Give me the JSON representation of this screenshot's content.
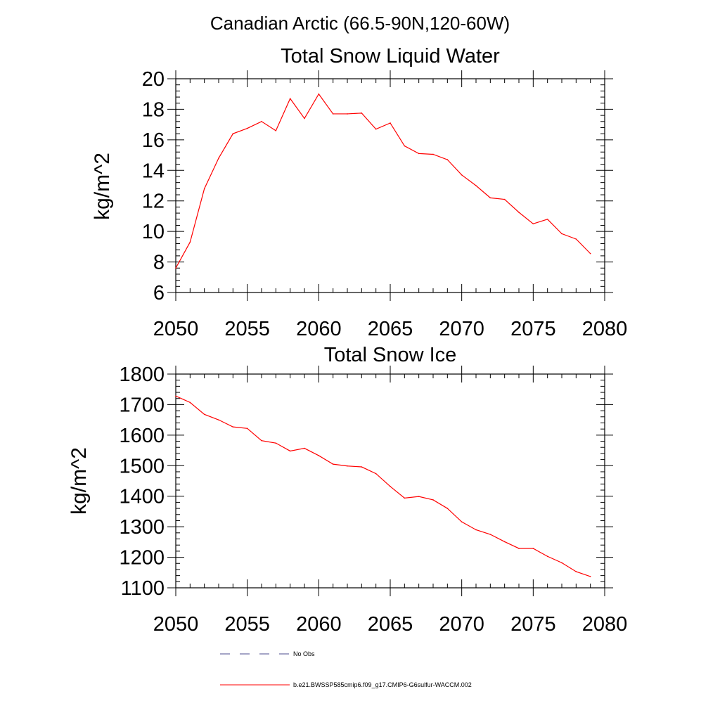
{
  "region_title": "Canadian Arctic (66.5-90N,120-60W)",
  "colors": {
    "model_line": "#ff0000",
    "obs_line": "#4b4b8c",
    "axis": "#000000"
  },
  "legend": [
    {
      "label": "No Obs",
      "style": "dashed",
      "color": "#4b4b8c"
    },
    {
      "label": "b.e21.BWSSP585cmip6.f09_g17.CMIP6-G6sulfur-WACCM.002",
      "style": "solid",
      "color": "#ff0000"
    }
  ],
  "chart_data": [
    {
      "type": "line",
      "title": "Total Snow Liquid Water",
      "xlabel": "",
      "ylabel": "kg/m^2",
      "xlim": [
        2050,
        2080
      ],
      "ylim": [
        6,
        20
      ],
      "xticks": [
        "2050",
        "2055",
        "2060",
        "2065",
        "2070",
        "2075",
        "2080"
      ],
      "yticks": [
        "6",
        "8",
        "10",
        "12",
        "14",
        "16",
        "18",
        "20"
      ],
      "grid": false,
      "x": [
        2050,
        2051,
        2052,
        2053,
        2054,
        2055,
        2056,
        2057,
        2058,
        2059,
        2060,
        2061,
        2062,
        2063,
        2064,
        2065,
        2066,
        2067,
        2068,
        2069,
        2070,
        2071,
        2072,
        2073,
        2074,
        2075,
        2076,
        2077,
        2078,
        2079
      ],
      "series": [
        {
          "values": [
            7.6,
            9.3,
            12.8,
            14.8,
            16.4,
            16.75,
            17.2,
            16.6,
            18.7,
            17.4,
            19.0,
            17.7,
            17.7,
            17.75,
            16.7,
            17.1,
            15.6,
            15.1,
            15.05,
            14.7,
            13.7,
            13.0,
            12.2,
            12.1,
            11.25,
            10.5,
            10.8,
            9.85,
            9.5,
            8.55
          ]
        }
      ]
    },
    {
      "type": "line",
      "title": "Total Snow Ice",
      "xlabel": "",
      "ylabel": "kg/m^2",
      "xlim": [
        2050,
        2080
      ],
      "ylim": [
        1100,
        1800
      ],
      "xticks": [
        "2050",
        "2055",
        "2060",
        "2065",
        "2070",
        "2075",
        "2080"
      ],
      "yticks": [
        "1100",
        "1200",
        "1300",
        "1400",
        "1500",
        "1600",
        "1700",
        "1800"
      ],
      "grid": false,
      "x": [
        2050,
        2051,
        2052,
        2053,
        2054,
        2055,
        2056,
        2057,
        2058,
        2059,
        2060,
        2061,
        2062,
        2063,
        2064,
        2065,
        2066,
        2067,
        2068,
        2069,
        2070,
        2071,
        2072,
        2073,
        2074,
        2075,
        2076,
        2077,
        2078,
        2079
      ],
      "series": [
        {
          "values": [
            1728,
            1707,
            1668,
            1650,
            1627,
            1622,
            1582,
            1574,
            1548,
            1557,
            1533,
            1505,
            1499,
            1496,
            1474,
            1432,
            1394,
            1399,
            1388,
            1360,
            1316,
            1290,
            1275,
            1251,
            1229,
            1229,
            1203,
            1182,
            1153,
            1137
          ]
        }
      ]
    }
  ]
}
